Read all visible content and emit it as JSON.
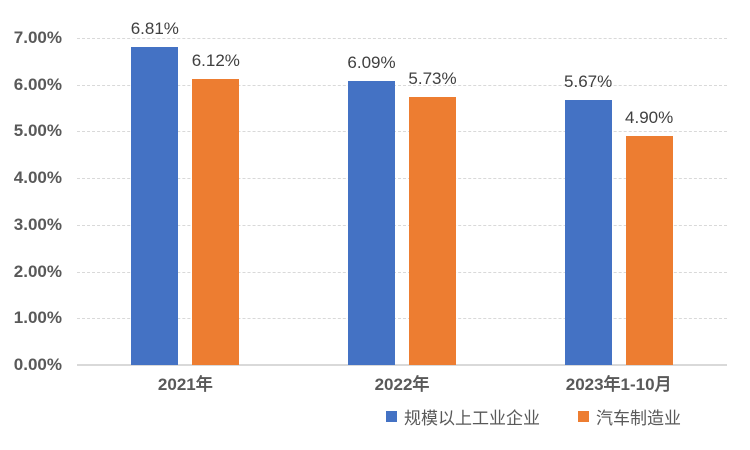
{
  "chart_data": {
    "type": "bar",
    "title": "",
    "categories": [
      "2021年",
      "2022年",
      "2023年1-10月"
    ],
    "series": [
      {
        "name": "规模以上工业企业",
        "slug": "industrial-enterprises",
        "color": "#4472C4",
        "values": [
          6.81,
          6.09,
          5.67
        ],
        "labels": [
          "6.81%",
          "6.09%",
          "5.67%"
        ]
      },
      {
        "name": "汽车制造业",
        "slug": "auto-manufacturing",
        "color": "#ED7D31",
        "values": [
          6.12,
          5.73,
          4.9
        ],
        "labels": [
          "6.12%",
          "5.73%",
          "4.90%"
        ]
      }
    ],
    "y_axis": {
      "min": 0,
      "max": 7,
      "step": 1,
      "tick_labels": [
        "0.00%",
        "1.00%",
        "2.00%",
        "3.00%",
        "4.00%",
        "5.00%",
        "6.00%",
        "7.00%"
      ]
    },
    "grid": true,
    "gridline_style": "dashed",
    "legend_position": "bottom-right",
    "colors": {
      "gridline": "#d9d9d9",
      "axis_text": "#595959",
      "data_label_text": "#404040",
      "background": "#ffffff"
    }
  }
}
